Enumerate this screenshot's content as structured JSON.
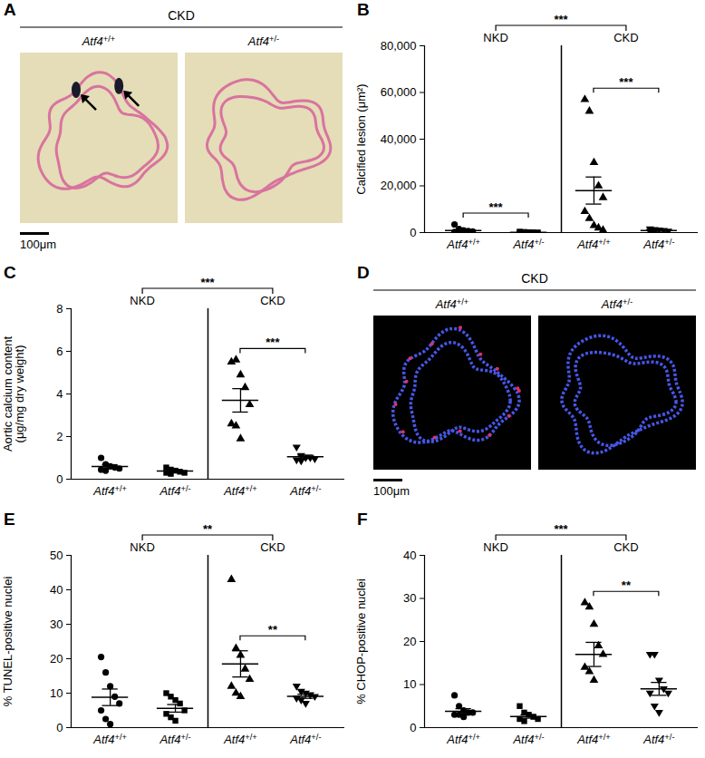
{
  "image_panels": [
    {
      "panel": "A",
      "type": "brightfield",
      "title": "CKD",
      "labels": [
        "Atf4+/+",
        "Atf4+/-"
      ],
      "scale_bar": "100μm"
    },
    {
      "panel": "D",
      "type": "fluorescence",
      "title": "CKD",
      "labels": [
        "Atf4+/+",
        "Atf4+/-"
      ],
      "scale_bar": "100μm"
    }
  ],
  "chart_data": [
    {
      "panel": "B",
      "type": "scatter",
      "y_label": "Calcified lesion (μm²)",
      "ylim": [
        0,
        80000
      ],
      "yticks": [
        0,
        20000,
        40000,
        60000,
        80000
      ],
      "color": "#000000",
      "groups": [
        {
          "name": "NKD",
          "members": [
            0,
            1
          ]
        },
        {
          "name": "CKD",
          "members": [
            2,
            3
          ]
        }
      ],
      "group_comparison": "***",
      "comparisons": [
        {
          "between": [
            0,
            1
          ],
          "label": "***"
        },
        {
          "between": [
            2,
            3
          ],
          "label": "***"
        }
      ],
      "series": [
        {
          "name": "Atf4+/+",
          "marker": "circle",
          "values": [
            3500,
            1500,
            900,
            600,
            400,
            300,
            200,
            100
          ],
          "mean": 900,
          "sem": 400
        },
        {
          "name": "Atf4+/-",
          "marker": "square",
          "values": [
            400,
            250,
            150,
            100,
            50,
            30,
            0,
            0
          ],
          "mean": 120,
          "sem": 50
        },
        {
          "name": "Atf4+/+",
          "marker": "triangle",
          "values": [
            57000,
            52000,
            30000,
            20000,
            15000,
            9000,
            6000,
            3000,
            2000,
            1000
          ],
          "mean": 18000,
          "sem": 5800
        },
        {
          "name": "Atf4+/-",
          "marker": "triangle-down",
          "values": [
            1500,
            1200,
            1000,
            800,
            500,
            400,
            300
          ],
          "mean": 850,
          "sem": 170
        }
      ]
    },
    {
      "panel": "C",
      "type": "scatter",
      "y_label": "Aortic calcium content\n(μg/mg dry weight)",
      "ylim": [
        0,
        8
      ],
      "yticks": [
        0,
        2,
        4,
        6,
        8
      ],
      "color": "#000000",
      "groups": [
        {
          "name": "NKD",
          "members": [
            0,
            1
          ]
        },
        {
          "name": "CKD",
          "members": [
            2,
            3
          ]
        }
      ],
      "group_comparison": "***",
      "comparisons": [
        {
          "between": [
            2,
            3
          ],
          "label": "***"
        }
      ],
      "series": [
        {
          "name": "Atf4+/+",
          "marker": "circle",
          "values": [
            1.0,
            0.7,
            0.6,
            0.55,
            0.5,
            0.45,
            0.4
          ],
          "mean": 0.6,
          "sem": 0.08
        },
        {
          "name": "Atf4+/-",
          "marker": "square",
          "values": [
            0.55,
            0.45,
            0.4,
            0.35,
            0.3,
            0.3,
            0.25
          ],
          "mean": 0.38,
          "sem": 0.04
        },
        {
          "name": "Atf4+/+",
          "marker": "triangle",
          "values": [
            5.5,
            5.6,
            4.9,
            4.3,
            3.5,
            2.6,
            2.5,
            1.9
          ],
          "mean": 3.7,
          "sem": 0.55
        },
        {
          "name": "Atf4+/-",
          "marker": "triangle-down",
          "values": [
            1.5,
            1.1,
            1.0,
            1.0,
            0.95,
            0.9,
            0.85
          ],
          "mean": 1.05,
          "sem": 0.08
        }
      ]
    },
    {
      "panel": "E",
      "type": "scatter",
      "y_label": "% TUNEL-positive nuclei",
      "ylim": [
        0,
        50
      ],
      "yticks": [
        0,
        10,
        20,
        30,
        40,
        50
      ],
      "color": "#000000",
      "groups": [
        {
          "name": "NKD",
          "members": [
            0,
            1
          ]
        },
        {
          "name": "CKD",
          "members": [
            2,
            3
          ]
        }
      ],
      "group_comparison": "**",
      "comparisons": [
        {
          "between": [
            2,
            3
          ],
          "label": "**"
        }
      ],
      "series": [
        {
          "name": "Atf4+/+",
          "marker": "circle",
          "values": [
            20.5,
            16,
            12,
            9,
            7,
            5,
            2.5,
            1
          ],
          "mean": 8.8,
          "sem": 2.4
        },
        {
          "name": "Atf4+/-",
          "marker": "square",
          "values": [
            10,
            9,
            8,
            7,
            5,
            4,
            3,
            2
          ],
          "mean": 5.6,
          "sem": 1.1
        },
        {
          "name": "Atf4+/+",
          "marker": "triangle",
          "values": [
            43,
            23,
            21,
            17,
            14,
            12,
            10,
            9
          ],
          "mean": 18.5,
          "sem": 3.8
        },
        {
          "name": "Atf4+/-",
          "marker": "triangle-down",
          "values": [
            12,
            10.5,
            10,
            9.5,
            9,
            8.5,
            8,
            7
          ],
          "mean": 9.1,
          "sem": 0.6
        }
      ]
    },
    {
      "panel": "F",
      "type": "scatter",
      "y_label": "% CHOP-positive nuclei",
      "ylim": [
        0,
        40
      ],
      "yticks": [
        0,
        10,
        20,
        30,
        40
      ],
      "color": "#000000",
      "groups": [
        {
          "name": "NKD",
          "members": [
            0,
            1
          ]
        },
        {
          "name": "CKD",
          "members": [
            2,
            3
          ]
        }
      ],
      "group_comparison": "***",
      "comparisons": [
        {
          "between": [
            2,
            3
          ],
          "label": "**"
        }
      ],
      "series": [
        {
          "name": "Atf4+/+",
          "marker": "circle",
          "values": [
            7.5,
            5,
            4,
            3.5,
            3.5,
            3,
            3,
            2.5
          ],
          "mean": 3.8,
          "sem": 0.6
        },
        {
          "name": "Atf4+/-",
          "marker": "square",
          "values": [
            5,
            3.5,
            3,
            2.5,
            2,
            2,
            1.5
          ],
          "mean": 2.6,
          "sem": 0.4
        },
        {
          "name": "Atf4+/+",
          "marker": "triangle",
          "values": [
            29,
            28,
            24,
            19,
            17,
            14,
            13,
            11
          ],
          "mean": 17,
          "sem": 2.8
        },
        {
          "name": "Atf4+/-",
          "marker": "triangle-down",
          "values": [
            17,
            17,
            11,
            9,
            8,
            8,
            5,
            3.5
          ],
          "mean": 9,
          "sem": 1.5
        }
      ]
    }
  ]
}
